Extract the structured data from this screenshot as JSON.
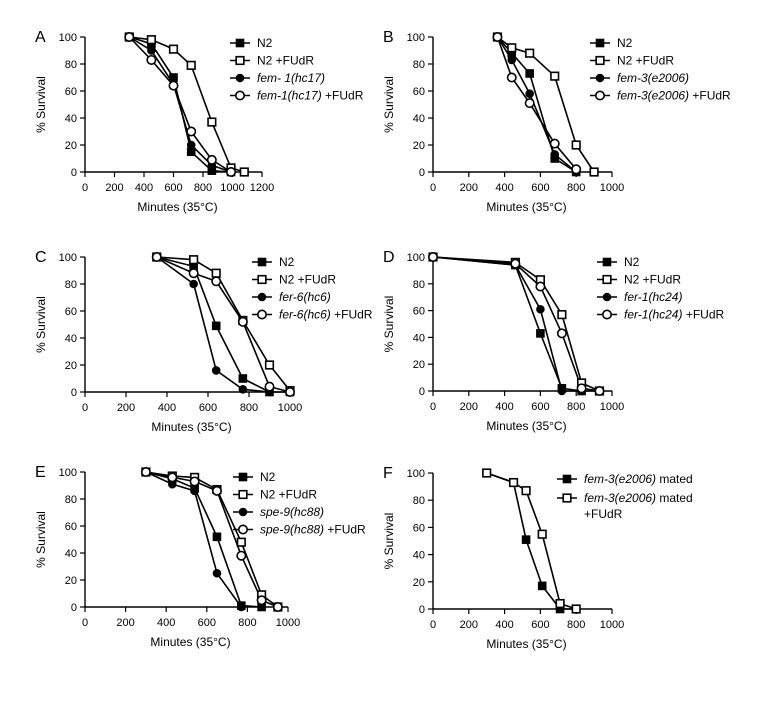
{
  "chart_data": [
    {
      "panel": "A",
      "type": "line",
      "xlabel": "Minutes (35°C)",
      "ylabel": "% Survival",
      "xlim": [
        0,
        1200
      ],
      "ylim": [
        0,
        100
      ],
      "xticks": [
        "0",
        "200",
        "400",
        "600",
        "800",
        "1000",
        "1200"
      ],
      "yticks": [
        "0",
        "20",
        "40",
        "60",
        "80",
        "100"
      ],
      "series": [
        {
          "marker": "filled-square",
          "legend": [
            {
              "text": "N2"
            }
          ],
          "x": [
            300,
            450,
            600,
            720,
            860,
            990
          ],
          "y": [
            100,
            95,
            70,
            15,
            1,
            0
          ]
        },
        {
          "marker": "open-square",
          "legend": [
            {
              "text": "N2 +FUdR"
            }
          ],
          "x": [
            300,
            450,
            600,
            720,
            860,
            990,
            1080
          ],
          "y": [
            100,
            98,
            91,
            79,
            37,
            3,
            0
          ]
        },
        {
          "marker": "filled-circle",
          "legend": [
            {
              "text": "fem- 1(hc17)",
              "italic": true
            }
          ],
          "x": [
            300,
            450,
            600,
            720,
            860,
            990
          ],
          "y": [
            100,
            90,
            65,
            20,
            5,
            0
          ]
        },
        {
          "marker": "open-circle",
          "legend": [
            {
              "text": "fem-1(hc17)",
              "italic": true
            },
            {
              "text": " +FUdR"
            }
          ],
          "x": [
            300,
            450,
            600,
            720,
            860,
            990
          ],
          "y": [
            100,
            83,
            64,
            30,
            9,
            0
          ]
        }
      ]
    },
    {
      "panel": "B",
      "type": "line",
      "xlabel": "Minutes (35°C)",
      "ylabel": "% Survival",
      "xlim": [
        0,
        1000
      ],
      "ylim": [
        0,
        100
      ],
      "xticks": [
        "0",
        "200",
        "400",
        "600",
        "800",
        "1000"
      ],
      "yticks": [
        "0",
        "20",
        "40",
        "60",
        "80",
        "100"
      ],
      "series": [
        {
          "marker": "filled-square",
          "legend": [
            {
              "text": "N2"
            }
          ],
          "x": [
            360,
            440,
            540,
            680,
            800
          ],
          "y": [
            100,
            88,
            73,
            10,
            0
          ]
        },
        {
          "marker": "open-square",
          "legend": [
            {
              "text": "N2 +FUdR"
            }
          ],
          "x": [
            360,
            440,
            540,
            680,
            800,
            900
          ],
          "y": [
            100,
            92,
            88,
            71,
            20,
            0
          ]
        },
        {
          "marker": "filled-circle",
          "legend": [
            {
              "text": "fem-3(e2006)",
              "italic": true
            }
          ],
          "x": [
            360,
            440,
            540,
            680,
            800
          ],
          "y": [
            100,
            83,
            58,
            13,
            0
          ]
        },
        {
          "marker": "open-circle",
          "legend": [
            {
              "text": "fem-3(e2006)",
              "italic": true
            },
            {
              "text": " +FUdR"
            }
          ],
          "x": [
            360,
            440,
            540,
            680,
            800
          ],
          "y": [
            100,
            70,
            51,
            21,
            2
          ]
        }
      ]
    },
    {
      "panel": "C",
      "type": "line",
      "xlabel": "Minutes (35°C)",
      "ylabel": "% Survival",
      "xlim": [
        0,
        1000
      ],
      "ylim": [
        0,
        100
      ],
      "xticks": [
        "0",
        "200",
        "400",
        "600",
        "800",
        "1000"
      ],
      "yticks": [
        "0",
        "20",
        "40",
        "60",
        "80",
        "100"
      ],
      "series": [
        {
          "marker": "filled-square",
          "legend": [
            {
              "text": "N2"
            }
          ],
          "x": [
            350,
            530,
            640,
            770,
            900,
            1000
          ],
          "y": [
            100,
            93,
            49,
            10,
            0,
            0
          ]
        },
        {
          "marker": "open-square",
          "legend": [
            {
              "text": "N2 +FUdR"
            }
          ],
          "x": [
            350,
            530,
            640,
            770,
            900,
            1000
          ],
          "y": [
            100,
            98,
            88,
            53,
            20,
            1
          ]
        },
        {
          "marker": "filled-circle",
          "legend": [
            {
              "text": "fer-6(hc6)",
              "italic": true
            }
          ],
          "x": [
            350,
            530,
            640,
            770,
            900
          ],
          "y": [
            100,
            80,
            16,
            2,
            0
          ]
        },
        {
          "marker": "open-circle",
          "legend": [
            {
              "text": "fer-6(hc6)",
              "italic": true
            },
            {
              "text": " +FUdR"
            }
          ],
          "x": [
            350,
            530,
            640,
            770,
            900,
            1000
          ],
          "y": [
            100,
            88,
            82,
            52,
            4,
            0
          ]
        }
      ]
    },
    {
      "panel": "D",
      "type": "line",
      "xlabel": "Minutes (35°C)",
      "ylabel": "% Survival",
      "xlim": [
        0,
        1000
      ],
      "ylim": [
        0,
        100
      ],
      "xticks": [
        "0",
        "200",
        "400",
        "600",
        "800",
        "1000"
      ],
      "yticks": [
        "0",
        "20",
        "40",
        "60",
        "80",
        "100"
      ],
      "series": [
        {
          "marker": "filled-square",
          "legend": [
            {
              "text": "N2"
            }
          ],
          "x": [
            0,
            460,
            600,
            720,
            830,
            930
          ],
          "y": [
            100,
            94,
            43,
            2,
            0,
            0
          ]
        },
        {
          "marker": "open-square",
          "legend": [
            {
              "text": "N2 +FUdR"
            }
          ],
          "x": [
            0,
            460,
            600,
            720,
            830,
            930
          ],
          "y": [
            100,
            96,
            83,
            57,
            6,
            0
          ]
        },
        {
          "marker": "filled-circle",
          "legend": [
            {
              "text": "fer-1(hc24)",
              "italic": true
            }
          ],
          "x": [
            0,
            460,
            600,
            720,
            830
          ],
          "y": [
            100,
            94,
            61,
            0,
            0
          ]
        },
        {
          "marker": "open-circle",
          "legend": [
            {
              "text": "fer-1(hc24)",
              "italic": true
            },
            {
              "text": " +FUdR"
            }
          ],
          "x": [
            0,
            460,
            600,
            720,
            830,
            930
          ],
          "y": [
            100,
            95,
            78,
            43,
            2,
            0
          ]
        }
      ]
    },
    {
      "panel": "E",
      "type": "line",
      "xlabel": "Minutes (35°C)",
      "ylabel": "% Survival",
      "xlim": [
        0,
        1000
      ],
      "ylim": [
        0,
        100
      ],
      "xticks": [
        "0",
        "200",
        "400",
        "600",
        "800",
        "1000"
      ],
      "yticks": [
        "0",
        "20",
        "40",
        "60",
        "80",
        "100"
      ],
      "series": [
        {
          "marker": "filled-square",
          "legend": [
            {
              "text": "N2"
            }
          ],
          "x": [
            300,
            430,
            540,
            650,
            770,
            870
          ],
          "y": [
            100,
            95,
            88,
            52,
            1,
            0
          ]
        },
        {
          "marker": "open-square",
          "legend": [
            {
              "text": "N2 +FUdR"
            }
          ],
          "x": [
            300,
            430,
            540,
            650,
            770,
            870,
            950
          ],
          "y": [
            100,
            97,
            96,
            87,
            48,
            9,
            0
          ]
        },
        {
          "marker": "filled-circle",
          "legend": [
            {
              "text": "spe-9(hc88)",
              "italic": true
            }
          ],
          "x": [
            300,
            430,
            540,
            650,
            770
          ],
          "y": [
            100,
            91,
            86,
            25,
            0
          ]
        },
        {
          "marker": "open-circle",
          "legend": [
            {
              "text": "spe-9(hc88)",
              "italic": true
            },
            {
              "text": " +FUdR"
            }
          ],
          "x": [
            300,
            430,
            540,
            650,
            770,
            870,
            950
          ],
          "y": [
            100,
            96,
            93,
            86,
            38,
            5,
            0
          ]
        }
      ]
    },
    {
      "panel": "F",
      "type": "line",
      "xlabel": "Minutes (35°C)",
      "ylabel": "% Survival",
      "xlim": [
        0,
        1000
      ],
      "ylim": [
        0,
        100
      ],
      "xticks": [
        "0",
        "200",
        "400",
        "600",
        "800",
        "1000"
      ],
      "yticks": [
        "0",
        "20",
        "40",
        "60",
        "80",
        "100"
      ],
      "series": [
        {
          "marker": "filled-square",
          "legend": [
            {
              "text": "fem-3(e2006)",
              "italic": true
            },
            {
              "text": " mated"
            }
          ],
          "x": [
            300,
            450,
            520,
            610,
            710,
            800
          ],
          "y": [
            100,
            93,
            51,
            17,
            0,
            0
          ]
        },
        {
          "marker": "open-square",
          "legend": [
            {
              "text": "fem-3(e2006)",
              "italic": true
            },
            {
              "text": " mated"
            }
          ],
          "legend2": [
            {
              "text": "+FUdR"
            }
          ],
          "x": [
            300,
            450,
            520,
            610,
            710,
            800
          ],
          "y": [
            100,
            93,
            87,
            55,
            4,
            0
          ]
        }
      ]
    }
  ]
}
